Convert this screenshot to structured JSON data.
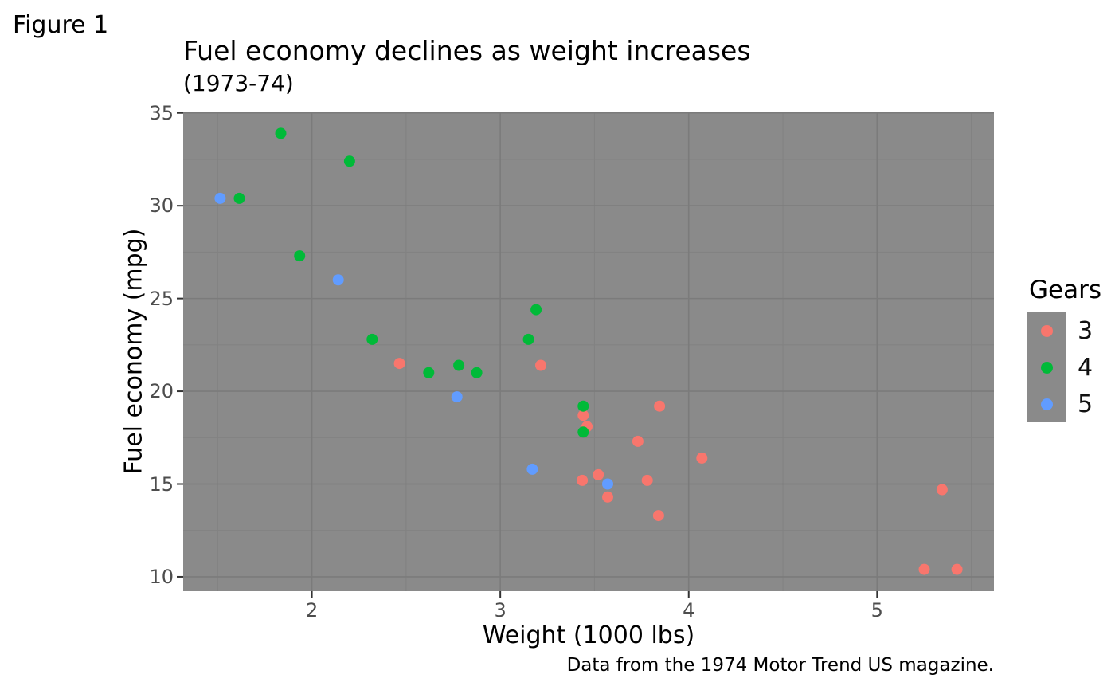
{
  "figure_label": "Figure 1",
  "chart_data": {
    "type": "scatter",
    "title": "Fuel economy declines as weight increases",
    "subtitle": "(1973-74)",
    "caption": "Data from the 1974 Motor Trend US magazine.",
    "xlabel": "Weight (1000 lbs)",
    "ylabel": "Fuel economy (mpg)",
    "xlim": [
      1.317,
      5.62
    ],
    "ylim": [
      9.225,
      35.075
    ],
    "x_major_ticks": [
      2,
      3,
      4,
      5
    ],
    "x_tick_labels": [
      "2",
      "3",
      "4",
      "5"
    ],
    "x_minor_ticks": [
      1.5,
      2.5,
      3.5,
      4.5,
      5.5
    ],
    "y_major_ticks": [
      10,
      15,
      20,
      25,
      30,
      35
    ],
    "y_tick_labels": [
      "10",
      "15",
      "20",
      "25",
      "30",
      "35"
    ],
    "y_minor_ticks": [
      12.5,
      17.5,
      22.5,
      27.5,
      32.5
    ],
    "grid": true,
    "legend": {
      "title": "Gears",
      "position": "right"
    },
    "colors": {
      "panel_bg": "#8a8a8a",
      "grid_major": "#7b7b7b",
      "grid_minor": "#828282",
      "tick_mark": "#333333",
      "tick_text": "#4d4d4d",
      "gear3": "#F8766D",
      "gear4": "#00BA38",
      "gear5": "#619CFF"
    },
    "point_radius": 7,
    "series": [
      {
        "name": "3",
        "color": "#F8766D",
        "points": [
          [
            2.465,
            21.5
          ],
          [
            3.215,
            21.4
          ],
          [
            3.435,
            15.2
          ],
          [
            3.44,
            18.7
          ],
          [
            3.46,
            18.1
          ],
          [
            3.52,
            15.5
          ],
          [
            3.57,
            14.3
          ],
          [
            3.73,
            17.3
          ],
          [
            3.78,
            15.2
          ],
          [
            3.84,
            13.3
          ],
          [
            3.845,
            19.2
          ],
          [
            4.07,
            16.4
          ],
          [
            5.25,
            10.4
          ],
          [
            5.345,
            14.7
          ],
          [
            5.424,
            10.4
          ]
        ]
      },
      {
        "name": "4",
        "color": "#00BA38",
        "points": [
          [
            1.615,
            30.4
          ],
          [
            1.835,
            33.9
          ],
          [
            1.935,
            27.3
          ],
          [
            2.2,
            32.4
          ],
          [
            2.32,
            22.8
          ],
          [
            2.62,
            21.0
          ],
          [
            2.78,
            21.4
          ],
          [
            2.875,
            21.0
          ],
          [
            3.15,
            22.8
          ],
          [
            3.19,
            24.4
          ],
          [
            3.44,
            19.2
          ],
          [
            3.44,
            17.8
          ]
        ]
      },
      {
        "name": "5",
        "color": "#619CFF",
        "points": [
          [
            1.513,
            30.4
          ],
          [
            2.14,
            26.0
          ],
          [
            2.77,
            19.7
          ],
          [
            3.17,
            15.8
          ],
          [
            3.57,
            15.0
          ]
        ]
      }
    ]
  }
}
